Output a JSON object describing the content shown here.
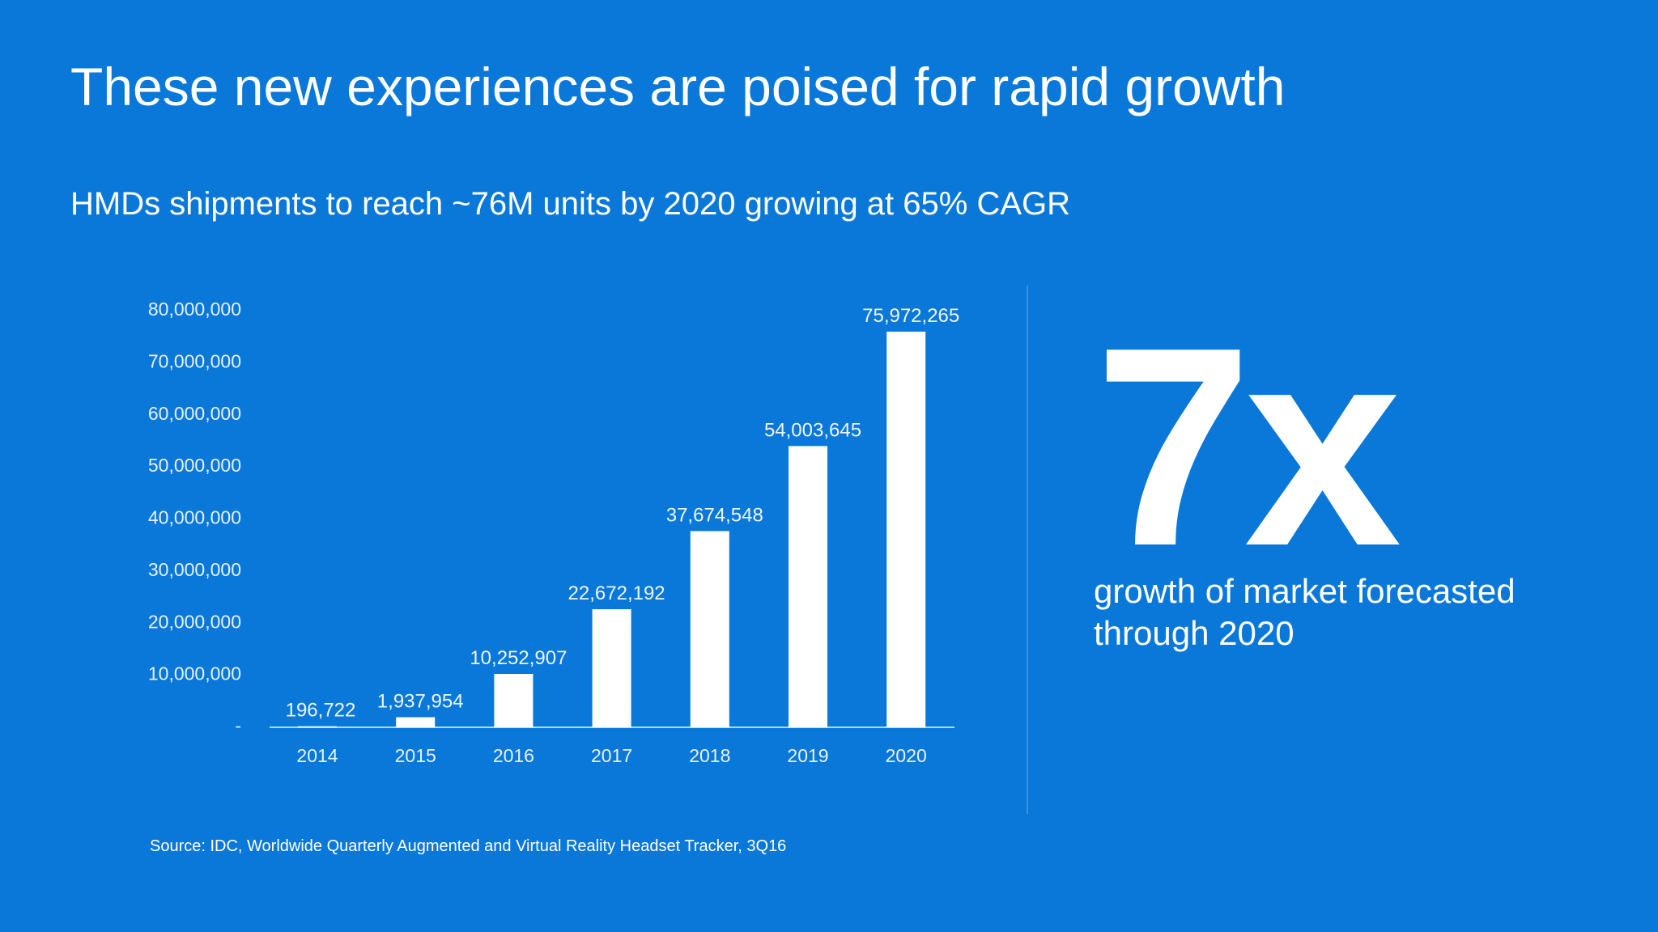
{
  "chart_data": {
    "type": "bar",
    "title": "These new experiences are poised for rapid growth",
    "subtitle": "HMDs shipments to reach ~76M units by 2020 growing at 65% CAGR",
    "categories": [
      "2014",
      "2015",
      "2016",
      "2017",
      "2018",
      "2019",
      "2020"
    ],
    "values": [
      196722,
      1937954,
      10252907,
      22672192,
      37674548,
      54003645,
      75972265
    ],
    "value_labels": [
      "196,722",
      "1,937,954",
      "10,252,907",
      "22,672,192",
      "37,674,548",
      "54,003,645",
      "75,972,265"
    ],
    "color": "#ffffff",
    "ylim": [
      0,
      80000000
    ],
    "yticks": [
      {
        "value": 0,
        "label": "-"
      },
      {
        "value": 10000000,
        "label": "10,000,000"
      },
      {
        "value": 20000000,
        "label": "20,000,000"
      },
      {
        "value": 30000000,
        "label": "30,000,000"
      },
      {
        "value": 40000000,
        "label": "40,000,000"
      },
      {
        "value": 50000000,
        "label": "50,000,000"
      },
      {
        "value": 60000000,
        "label": "60,000,000"
      },
      {
        "value": 70000000,
        "label": "70,000,000"
      },
      {
        "value": 80000000,
        "label": "80,000,000"
      }
    ],
    "grid": false,
    "source": "Source: IDC, Worldwide Quarterly Augmented and Virtual Reality Headset Tracker, 3Q16"
  },
  "callout": {
    "headline": "7x",
    "caption_lines": [
      "growth of market forecasted",
      "through 2020"
    ]
  }
}
